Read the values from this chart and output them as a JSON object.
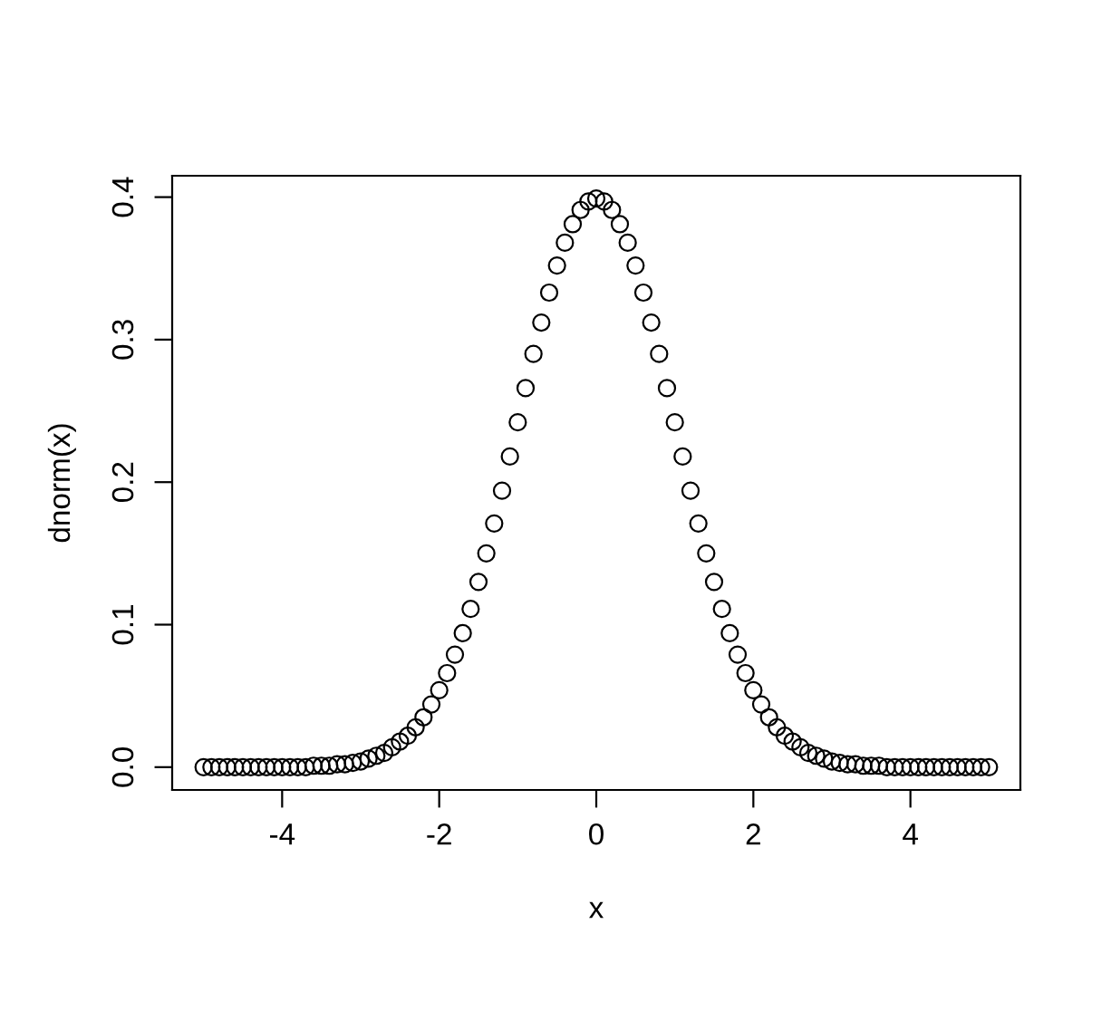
{
  "chart_data": {
    "type": "scatter",
    "xlabel": "x",
    "ylabel": "dnorm(x)",
    "marker": "circle",
    "grid": false,
    "x": [
      -5,
      -4.9,
      -4.8,
      -4.7,
      -4.6,
      -4.5,
      -4.4,
      -4.3,
      -4.2,
      -4.1,
      -4,
      -3.9,
      -3.8,
      -3.7,
      -3.6,
      -3.5,
      -3.4,
      -3.3,
      -3.2,
      -3.1,
      -3,
      -2.9,
      -2.8,
      -2.7,
      -2.6,
      -2.5,
      -2.4,
      -2.3,
      -2.2,
      -2.1,
      -2,
      -1.9,
      -1.8,
      -1.7,
      -1.6,
      -1.5,
      -1.4,
      -1.3,
      -1.2,
      -1.1,
      -1,
      -0.9,
      -0.8,
      -0.7,
      -0.6,
      -0.5,
      -0.4,
      -0.3,
      -0.2,
      -0.1,
      0,
      0.1,
      0.2,
      0.3,
      0.4,
      0.5,
      0.6,
      0.7,
      0.8,
      0.9,
      1,
      1.1,
      1.2,
      1.3,
      1.4,
      1.5,
      1.6,
      1.7,
      1.8,
      1.9,
      2,
      2.1,
      2.2,
      2.3,
      2.4,
      2.5,
      2.6,
      2.7,
      2.8,
      2.9,
      3,
      3.1,
      3.2,
      3.3,
      3.4,
      3.5,
      3.6,
      3.7,
      3.8,
      3.9,
      4,
      4.1,
      4.2,
      4.3,
      4.4,
      4.5,
      4.6,
      4.7,
      4.8,
      4.9,
      5
    ],
    "series": [
      {
        "color": "#000000",
        "values": [
          0,
          0,
          0,
          0,
          0,
          0,
          0,
          0,
          0,
          0,
          0,
          0,
          0,
          0,
          0.001,
          0.001,
          0.001,
          0.002,
          0.002,
          0.003,
          0.004,
          0.006,
          0.008,
          0.01,
          0.014,
          0.018,
          0.022,
          0.028,
          0.035,
          0.044,
          0.054,
          0.066,
          0.079,
          0.094,
          0.111,
          0.13,
          0.15,
          0.171,
          0.194,
          0.218,
          0.242,
          0.266,
          0.29,
          0.312,
          0.333,
          0.352,
          0.368,
          0.381,
          0.391,
          0.397,
          0.399,
          0.397,
          0.391,
          0.381,
          0.368,
          0.352,
          0.333,
          0.312,
          0.29,
          0.266,
          0.242,
          0.218,
          0.194,
          0.171,
          0.15,
          0.13,
          0.111,
          0.094,
          0.079,
          0.066,
          0.054,
          0.044,
          0.035,
          0.028,
          0.022,
          0.018,
          0.014,
          0.01,
          0.008,
          0.006,
          0.004,
          0.003,
          0.002,
          0.002,
          0.001,
          0.001,
          0.001,
          0,
          0,
          0,
          0,
          0,
          0,
          0,
          0,
          0,
          0,
          0,
          0,
          0,
          0
        ]
      }
    ],
    "xlim": [
      -5.4,
      5.4
    ],
    "ylim": [
      -0.016,
      0.415
    ],
    "xticks": [
      -4,
      -2,
      0,
      2,
      4
    ],
    "yticks": [
      {
        "value": 0,
        "label": "0.0"
      },
      0.1,
      0.2,
      0.3,
      0.4
    ]
  }
}
